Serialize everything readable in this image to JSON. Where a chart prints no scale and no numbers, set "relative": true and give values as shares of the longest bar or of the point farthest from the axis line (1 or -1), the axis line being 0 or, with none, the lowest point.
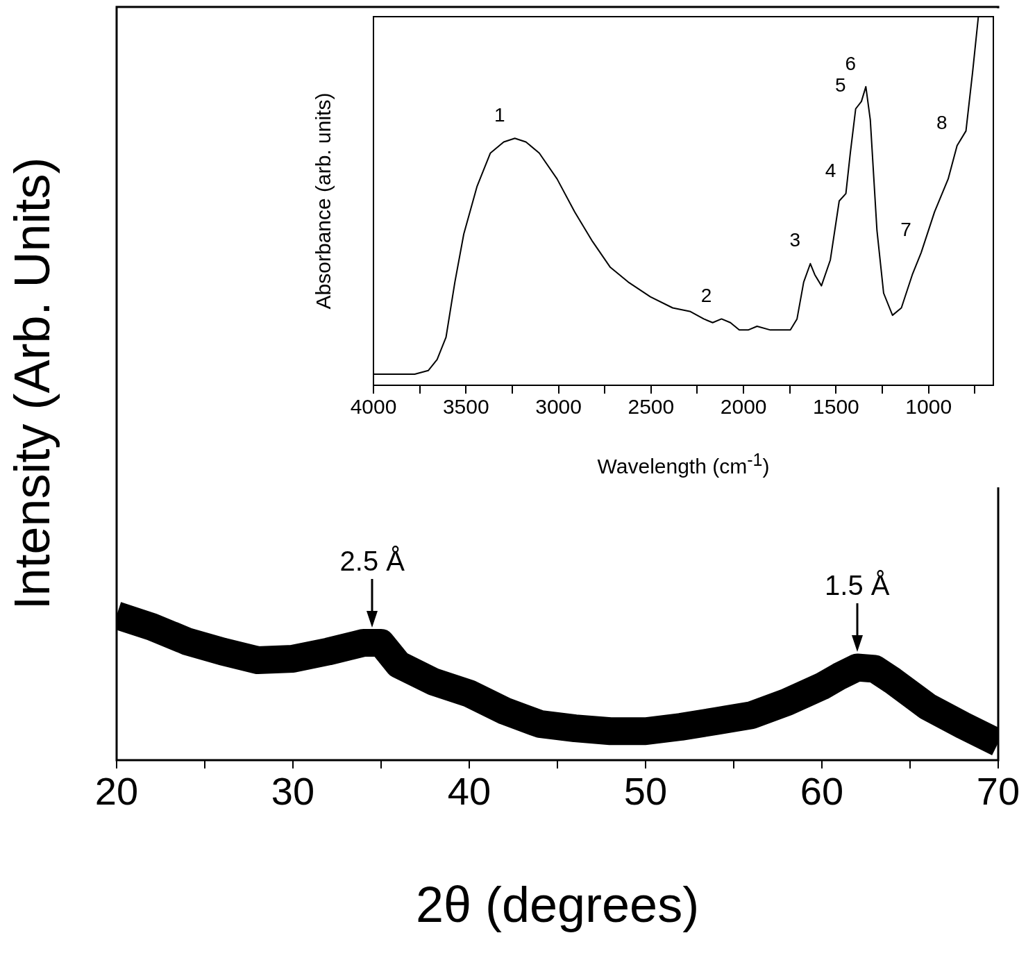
{
  "chart_data": [
    {
      "type": "line",
      "relative": true,
      "xlabel": "2θ (degrees)",
      "ylabel": "Intensity (Arb. Units)",
      "xlim": [
        20,
        70
      ],
      "xticks": [
        20,
        {
          "value": 25,
          "label": null
        },
        30,
        {
          "value": 35,
          "label": null
        },
        40,
        {
          "value": 45,
          "label": null
        },
        50,
        {
          "value": 55,
          "label": null
        },
        60,
        {
          "value": 65,
          "label": null
        },
        70
      ],
      "x": [
        20,
        22,
        24,
        26,
        28,
        30,
        32,
        34,
        35,
        36,
        38,
        40,
        42,
        44,
        46,
        48,
        50,
        52,
        54,
        56,
        58,
        60,
        61,
        62,
        63,
        64,
        66,
        68,
        70
      ],
      "series": [
        {
          "color": "#000000",
          "values": [
            1.0,
            0.92,
            0.82,
            0.75,
            0.69,
            0.7,
            0.75,
            0.81,
            0.81,
            0.66,
            0.54,
            0.46,
            0.34,
            0.25,
            0.22,
            0.2,
            0.2,
            0.23,
            0.27,
            0.31,
            0.4,
            0.51,
            0.58,
            0.64,
            0.63,
            0.55,
            0.37,
            0.24,
            0.12
          ]
        }
      ],
      "annotations": [
        {
          "text": "2.5 Å",
          "x": 34.5,
          "y": 0.81
        },
        {
          "text": "1.5 Å",
          "x": 62,
          "y": 0.64
        }
      ]
    },
    {
      "type": "line",
      "relative": true,
      "xlabel": "Wavelength (cm$^{-1}$)",
      "ylabel": "Absorbance (arb. units)",
      "xlim": [
        4000,
        650
      ],
      "xticks": [
        4000,
        {
          "value": 3750,
          "label": null
        },
        3500,
        {
          "value": 3250,
          "label": null
        },
        3000,
        {
          "value": 2750,
          "label": null
        },
        2500,
        {
          "value": 2250,
          "label": null
        },
        2000,
        {
          "value": 1750,
          "label": null
        },
        1500,
        {
          "value": 1250,
          "label": null
        },
        1000,
        {
          "value": 750,
          "label": null
        }
      ],
      "x": [
        4000,
        3777,
        3704,
        3656,
        3608,
        3560,
        3512,
        3440,
        3368,
        3296,
        3236,
        3176,
        3104,
        3008,
        2912,
        2816,
        2720,
        2623,
        2503,
        2383,
        2287,
        2215,
        2167,
        2119,
        2071,
        2023,
        1975,
        1927,
        1855,
        1747,
        1711,
        1675,
        1639,
        1615,
        1579,
        1531,
        1483,
        1447,
        1423,
        1394,
        1363,
        1339,
        1315,
        1279,
        1243,
        1195,
        1147,
        1088,
        1040,
        968,
        894,
        846,
        798,
        762,
        731
      ],
      "series": [
        {
          "color": "#000000",
          "values": [
            0.03,
            0.03,
            0.04,
            0.07,
            0.13,
            0.28,
            0.41,
            0.54,
            0.63,
            0.66,
            0.67,
            0.66,
            0.63,
            0.56,
            0.47,
            0.39,
            0.32,
            0.28,
            0.24,
            0.21,
            0.2,
            0.18,
            0.17,
            0.18,
            0.17,
            0.15,
            0.15,
            0.16,
            0.15,
            0.15,
            0.18,
            0.28,
            0.33,
            0.3,
            0.27,
            0.34,
            0.5,
            0.52,
            0.63,
            0.75,
            0.77,
            0.81,
            0.72,
            0.42,
            0.25,
            0.19,
            0.21,
            0.3,
            0.36,
            0.47,
            0.56,
            0.65,
            0.69,
            0.85,
            1.0
          ]
        }
      ],
      "annotations": [
        {
          "text": "1",
          "x": 3236,
          "y": 0.67
        },
        {
          "text": "2",
          "x": 2119,
          "y": 0.18
        },
        {
          "text": "3",
          "x": 1639,
          "y": 0.33
        },
        {
          "text": "4",
          "x": 1447,
          "y": 0.52
        },
        {
          "text": "5",
          "x": 1394,
          "y": 0.75
        },
        {
          "text": "6",
          "x": 1339,
          "y": 0.81
        },
        {
          "text": "7",
          "x": 1040,
          "y": 0.36
        },
        {
          "text": "8",
          "x": 846,
          "y": 0.65
        }
      ]
    }
  ]
}
